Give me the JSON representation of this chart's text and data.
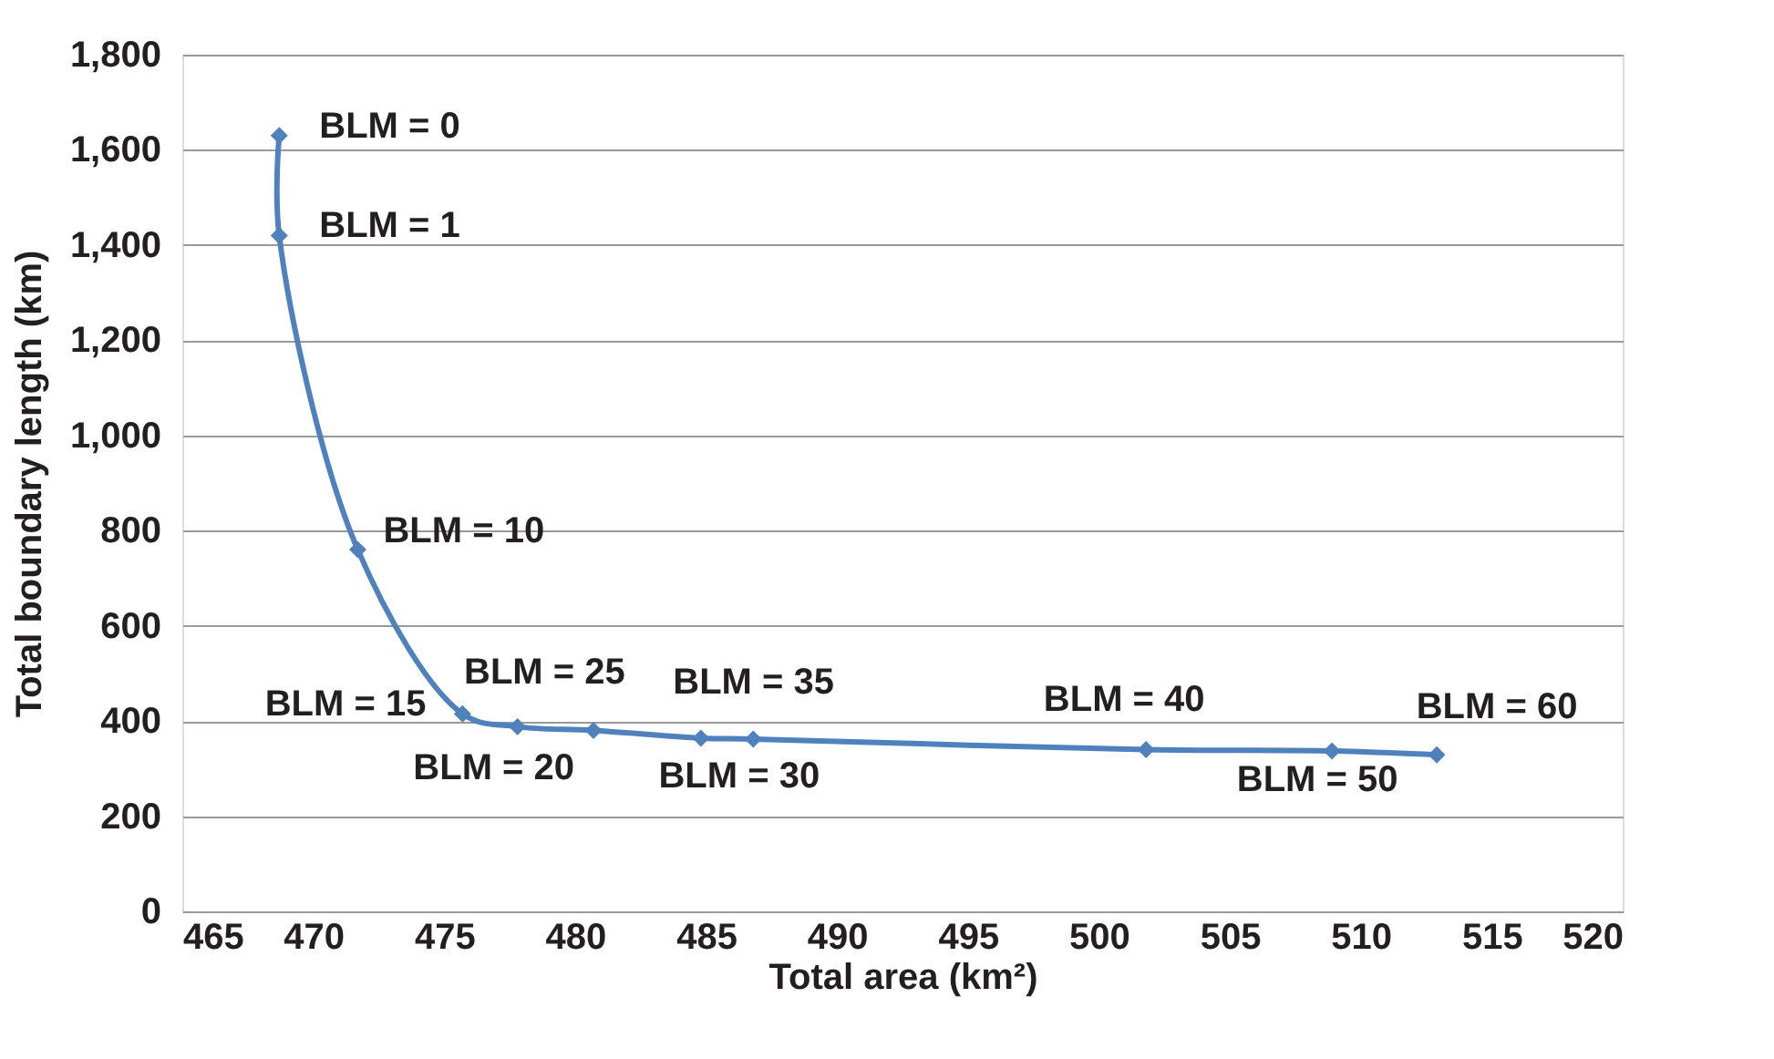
{
  "chart_data": {
    "type": "line",
    "xlabel": "Total area (km²)",
    "ylabel": "Total boundary length (km)",
    "x": [
      468.7,
      468.7,
      471.7,
      475.7,
      477.8,
      480.7,
      484.8,
      486.8,
      501.8,
      508.9,
      512.9
    ],
    "series": [
      {
        "color": "#4f81bd",
        "values": [
          1630,
          1420,
          760,
          415,
          388,
          380,
          364,
          362,
          340,
          337,
          329
        ]
      }
    ],
    "xlim": [
      465,
      520
    ],
    "xticks": [
      465,
      470,
      475,
      480,
      485,
      490,
      495,
      500,
      505,
      510,
      515,
      520
    ],
    "ylim": [
      0,
      1800
    ],
    "yticks": [
      0,
      200,
      400,
      600,
      800,
      {
        "value": 1000,
        "label": "1,000"
      },
      {
        "value": 1200,
        "label": "1,200"
      },
      {
        "value": 1400,
        "label": "1,400"
      },
      {
        "value": 1600,
        "label": "1,600"
      },
      {
        "value": 1800,
        "label": "1,800"
      }
    ],
    "grid": "y",
    "marker": "diamond",
    "line_style": "solid",
    "annotations": [
      {
        "text": "BLM = 0",
        "x": 468.7,
        "y": 1630
      },
      {
        "text": "BLM = 1",
        "x": 468.7,
        "y": 1420
      },
      {
        "text": "BLM = 10",
        "x": 471.7,
        "y": 760
      },
      {
        "text": "BLM = 15",
        "x": 475.7,
        "y": 415
      },
      {
        "text": "BLM = 20",
        "x": 477.8,
        "y": 388
      },
      {
        "text": "BLM = 25",
        "x": 480.7,
        "y": 380
      },
      {
        "text": "BLM = 30",
        "x": 484.8,
        "y": 364
      },
      {
        "text": "BLM = 35",
        "x": 486.8,
        "y": 362
      },
      {
        "text": "BLM = 40",
        "x": 501.8,
        "y": 340
      },
      {
        "text": "BLM = 50",
        "x": 508.9,
        "y": 337
      },
      {
        "text": "BLM = 60",
        "x": 512.9,
        "y": 329
      }
    ]
  }
}
